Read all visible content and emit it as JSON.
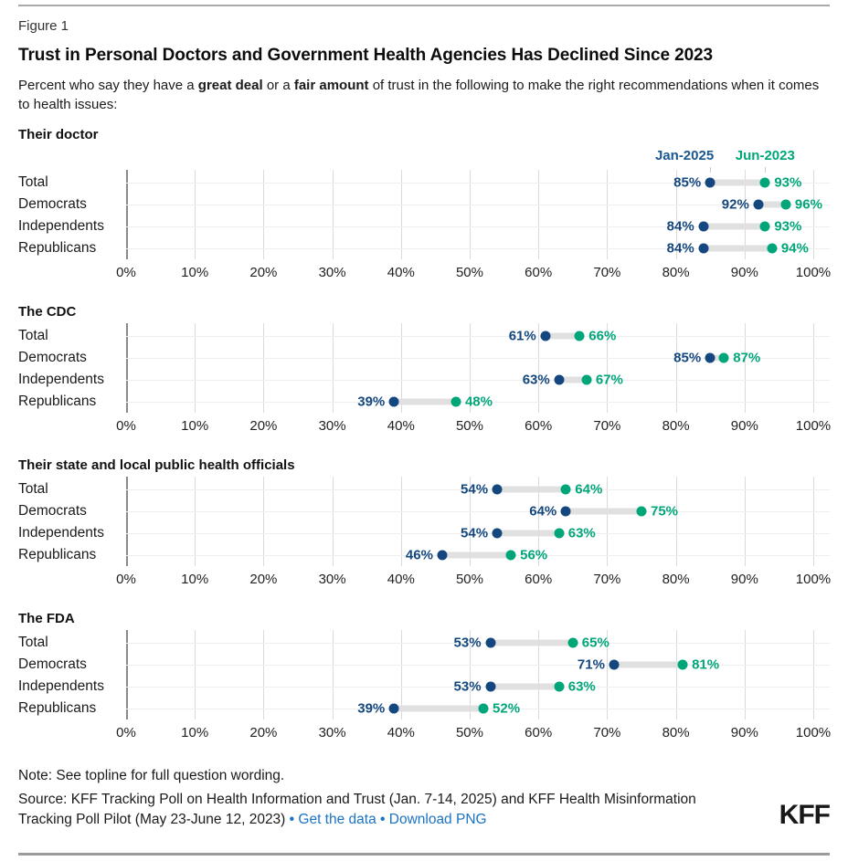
{
  "figure_label": "Figure 1",
  "title": "Trust in Personal Doctors and Government Health Agencies Has Declined Since 2023",
  "subtitle_parts": [
    {
      "text": "Percent who say they have a ",
      "bold": false
    },
    {
      "text": "great deal",
      "bold": true
    },
    {
      "text": " or a ",
      "bold": false
    },
    {
      "text": "fair amount",
      "bold": true
    },
    {
      "text": " of trust in the following to make the right recommendations when it comes to health issues:",
      "bold": false
    }
  ],
  "legend": {
    "series1": "Jan-2025",
    "series2": "Jun-2023"
  },
  "colors": {
    "blue": "#14477e",
    "legend_blue": "#1a578f",
    "green": "#00a679",
    "connector": "#e0e0e0",
    "link": "#1a73c5",
    "logo": "#181818"
  },
  "axis": {
    "tick_labels": [
      "0%",
      "10%",
      "20%",
      "30%",
      "40%",
      "50%",
      "60%",
      "70%",
      "80%",
      "90%",
      "100%"
    ]
  },
  "chart_data": [
    {
      "type": "dumbbell",
      "title": "Their doctor",
      "categories": [
        "Total",
        "Democrats",
        "Independents",
        "Republicans"
      ],
      "series": [
        {
          "name": "Jan-2025",
          "values": [
            85,
            92,
            84,
            84
          ]
        },
        {
          "name": "Jun-2023",
          "values": [
            93,
            96,
            93,
            94
          ]
        }
      ],
      "xlim": [
        0,
        100
      ]
    },
    {
      "type": "dumbbell",
      "title": "The CDC",
      "categories": [
        "Total",
        "Democrats",
        "Independents",
        "Republicans"
      ],
      "series": [
        {
          "name": "Jan-2025",
          "values": [
            61,
            85,
            63,
            39
          ]
        },
        {
          "name": "Jun-2023",
          "values": [
            66,
            87,
            67,
            48
          ]
        }
      ],
      "xlim": [
        0,
        100
      ]
    },
    {
      "type": "dumbbell",
      "title": "Their state and local public health officials",
      "categories": [
        "Total",
        "Democrats",
        "Independents",
        "Republicans"
      ],
      "series": [
        {
          "name": "Jan-2025",
          "values": [
            54,
            64,
            54,
            46
          ]
        },
        {
          "name": "Jun-2023",
          "values": [
            64,
            75,
            63,
            56
          ]
        }
      ],
      "xlim": [
        0,
        100
      ]
    },
    {
      "type": "dumbbell",
      "title": "The FDA",
      "categories": [
        "Total",
        "Democrats",
        "Independents",
        "Republicans"
      ],
      "series": [
        {
          "name": "Jan-2025",
          "values": [
            53,
            71,
            53,
            39
          ]
        },
        {
          "name": "Jun-2023",
          "values": [
            65,
            81,
            63,
            52
          ]
        }
      ],
      "xlim": [
        0,
        100
      ]
    }
  ],
  "note": "Note: See topline for full question wording.",
  "source_text": "Source: KFF Tracking Poll on Health Information and Trust (Jan. 7-14, 2025) and KFF Health Misinformation Tracking Poll Pilot (May 23-June 12, 2023)",
  "links": [
    {
      "label": "Get the data"
    },
    {
      "label": "Download PNG"
    }
  ],
  "logo_text": "KFF"
}
